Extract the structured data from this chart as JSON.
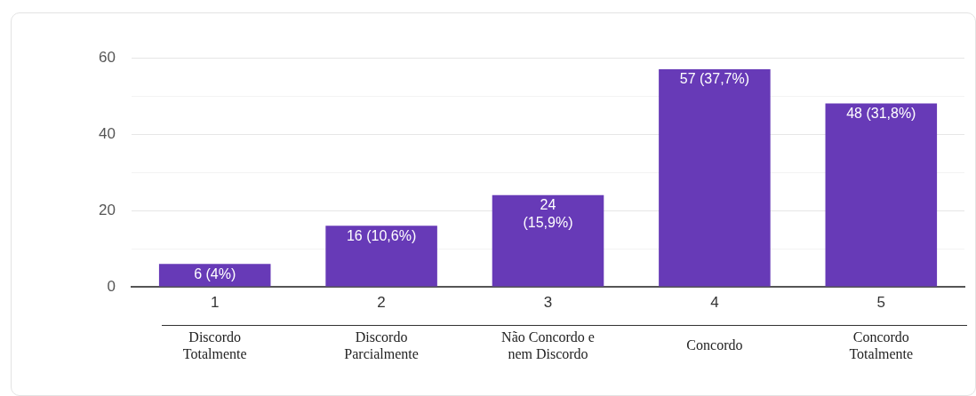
{
  "chart_data": {
    "type": "bar",
    "categories": [
      "1",
      "2",
      "3",
      "4",
      "5"
    ],
    "values": [
      6,
      16,
      24,
      57,
      48
    ],
    "color": "#673ab7",
    "value_labels": [
      "6 (4%)",
      "16 (10,6%)",
      "24\n(15,9%)",
      "57 (37,7%)",
      "48 (31,8%)"
    ],
    "ylim": [
      0,
      60
    ],
    "yticks": [
      0,
      {
        "value": 10,
        "label": null
      },
      20,
      {
        "value": 30,
        "label": null
      },
      40,
      {
        "value": 50,
        "label": null
      },
      60
    ],
    "grid": "y",
    "legend": false,
    "annotations": [
      "Discordo\nTotalmente",
      "Discordo\nParcialmente",
      "Não Concordo e\nnem Discordo",
      "Concordo",
      "Concordo\nTotalmente"
    ]
  }
}
